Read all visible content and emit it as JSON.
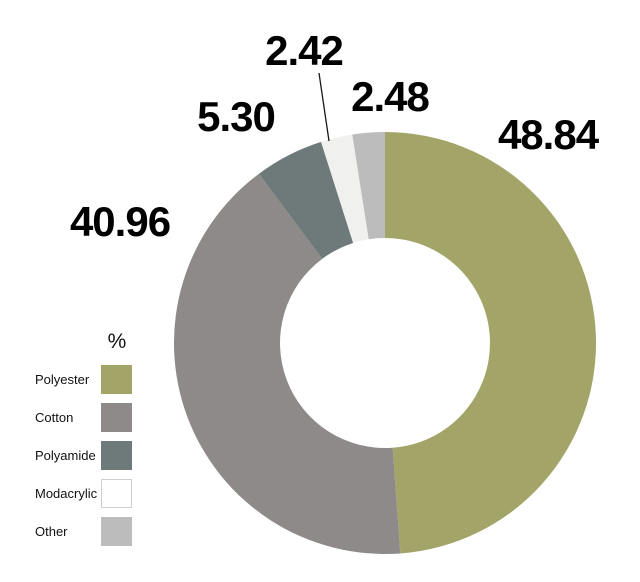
{
  "figure": {
    "background": "#ffffff"
  },
  "chart_data": {
    "type": "pie",
    "subtype": "donut",
    "unit": "%",
    "legend_title": "%",
    "legend_position": "left",
    "start_angle_deg": 0,
    "direction": "clockwise",
    "inner_radius_ratio": 0.5,
    "categories": [
      "Polyester",
      "Cotton",
      "Polyamide",
      "Modacrylic",
      "Other"
    ],
    "values": [
      48.84,
      40.96,
      5.3,
      2.42,
      2.48
    ],
    "display_values": [
      "48.84",
      "40.96",
      "5.30",
      "2.42",
      "2.48"
    ],
    "colors": [
      "#a3a468",
      "#8d8a89",
      "#6e7a7a",
      "#f0f0ee",
      "#bdbcbc"
    ],
    "label_color": "#000000",
    "leader_line_color": "#1a1a1a"
  }
}
